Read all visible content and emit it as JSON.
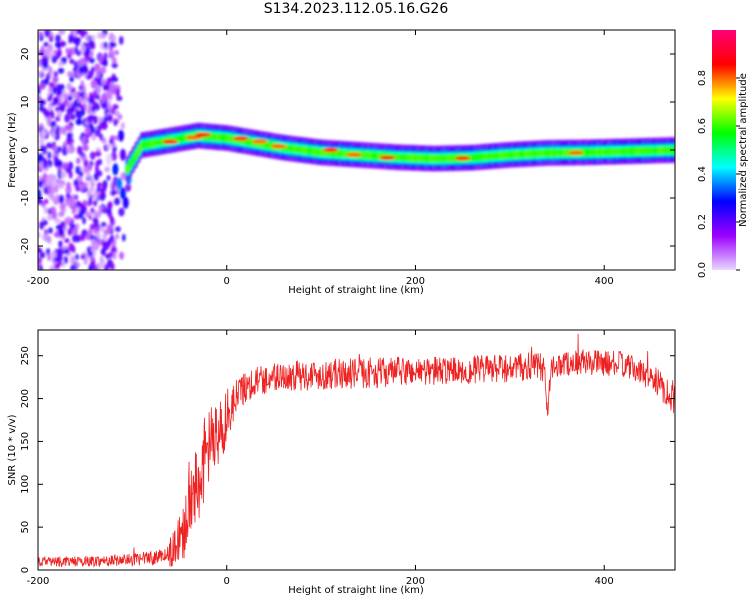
{
  "page": {
    "title": "S134.2023.112.05.16.G26"
  },
  "colors": {
    "snr_line": "#ee2222",
    "axis": "#000000",
    "background": "#ffffff"
  },
  "chart_data": [
    {
      "type": "heatmap",
      "xlabel": "Height of straight line (km)",
      "ylabel": "Frequency (Hz)",
      "xlim": [
        -200,
        475
      ],
      "ylim": [
        -25,
        25
      ],
      "x_ticks": [
        -200,
        0,
        200,
        400
      ],
      "y_ticks": [
        -20,
        -10,
        0,
        10,
        20
      ],
      "grid": false,
      "colorbar": {
        "label": "Normalized spectral amplitude",
        "range": [
          0,
          1
        ],
        "ticks": [
          0.0,
          0.2,
          0.4,
          0.6,
          0.8
        ],
        "colormap": [
          "#e9d8ff",
          "#9b00ff",
          "#0000ff",
          "#00ffff",
          "#00ff00",
          "#ffff00",
          "#ff0000",
          "#ff0077"
        ]
      },
      "ridge": {
        "x": [
          -105,
          -90,
          -60,
          -30,
          0,
          30,
          60,
          100,
          140,
          180,
          220,
          260,
          300,
          340,
          380,
          420,
          475
        ],
        "y": [
          -4,
          1,
          2,
          3,
          2.5,
          1.5,
          0.5,
          -0.5,
          -1,
          -1.5,
          -1.8,
          -1.6,
          -1,
          -0.6,
          -0.5,
          -0.3,
          0
        ]
      },
      "hotspots": [
        {
          "x": -60,
          "y": 1.7,
          "amp": 0.85
        },
        {
          "x": -35,
          "y": 2.6,
          "amp": 0.8
        },
        {
          "x": -25,
          "y": 3.2,
          "amp": 0.85
        },
        {
          "x": 15,
          "y": 2.4,
          "amp": 0.85
        },
        {
          "x": 35,
          "y": 1.8,
          "amp": 0.8
        },
        {
          "x": 55,
          "y": 0.8,
          "amp": 0.8
        },
        {
          "x": 110,
          "y": 0,
          "amp": 0.85
        },
        {
          "x": 135,
          "y": -1,
          "amp": 0.8
        },
        {
          "x": 170,
          "y": -1.6,
          "amp": 0.85
        },
        {
          "x": 250,
          "y": -1.7,
          "amp": 0.85
        },
        {
          "x": 370,
          "y": -0.6,
          "amp": 0.8
        }
      ]
    },
    {
      "type": "line",
      "xlabel": "Height of straight line (km)",
      "ylabel": "SNR (10 * v/v)",
      "xlim": [
        -200,
        475
      ],
      "ylim": [
        0,
        280
      ],
      "x_ticks": [
        -200,
        0,
        200,
        400
      ],
      "y_ticks": [
        0,
        50,
        100,
        150,
        200,
        250
      ],
      "grid": false,
      "series": [
        {
          "color": "#ee2222",
          "x": [
            -200,
            -150,
            -100,
            -70,
            -55,
            -45,
            -35,
            -25,
            -15,
            -5,
            0,
            5,
            10,
            15,
            20,
            30,
            50,
            100,
            150,
            200,
            250,
            300,
            330,
            337,
            340,
            343,
            350,
            380,
            420,
            450,
            475
          ],
          "y": [
            10,
            10,
            12,
            15,
            25,
            55,
            95,
            125,
            150,
            165,
            180,
            190,
            200,
            208,
            215,
            220,
            225,
            228,
            230,
            232,
            233,
            235,
            238,
            235,
            180,
            230,
            240,
            243,
            240,
            225,
            200
          ],
          "noise": [
            6,
            6,
            7,
            9,
            22,
            50,
            55,
            50,
            45,
            40,
            32,
            28,
            25,
            20,
            20,
            18,
            18,
            18,
            18,
            17,
            17,
            17,
            17,
            15,
            10,
            15,
            15,
            15,
            15,
            15,
            20
          ]
        }
      ]
    }
  ]
}
